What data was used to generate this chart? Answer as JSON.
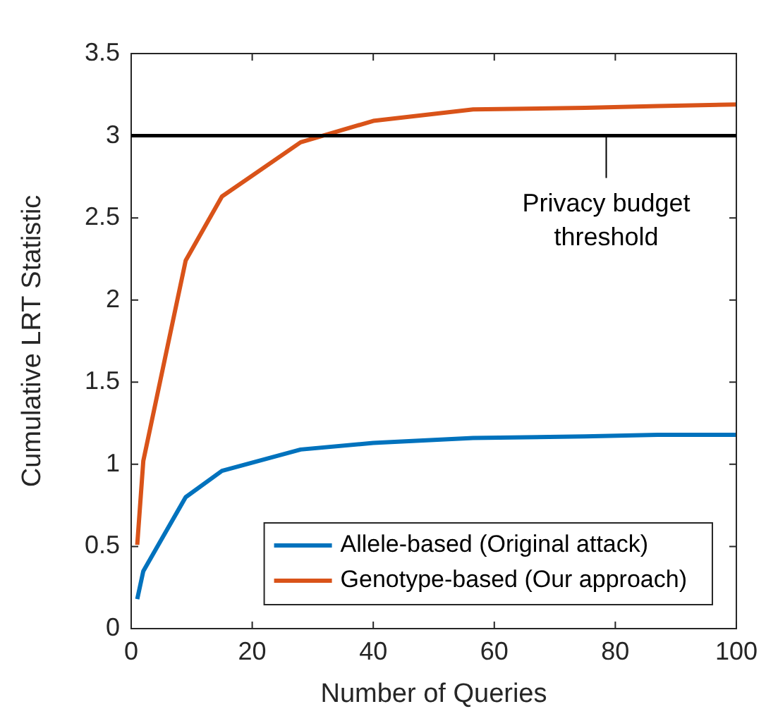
{
  "chart_data": {
    "type": "line",
    "xlabel": "Number of Queries",
    "ylabel": "Cumulative LRT Statistic",
    "x": [
      1,
      2,
      9,
      15,
      28,
      40,
      56.5,
      75,
      87,
      100
    ],
    "series": [
      {
        "name": "Allele-based (Original attack)",
        "color": "#0072bd",
        "values": [
          0.18,
          0.35,
          0.8,
          0.96,
          1.09,
          1.13,
          1.16,
          1.17,
          1.18,
          1.18
        ]
      },
      {
        "name": "Genotype-based (Our approach)",
        "color": "#d95319",
        "values": [
          0.51,
          1.02,
          2.24,
          2.63,
          2.96,
          3.09,
          3.16,
          3.17,
          3.18,
          3.19
        ]
      }
    ],
    "xlim": [
      0,
      100
    ],
    "xticks": [
      0,
      20,
      40,
      60,
      80,
      100
    ],
    "ylim": [
      0,
      3.5
    ],
    "yticks": [
      0,
      0.5,
      1,
      1.5,
      2,
      2.5,
      3,
      3.5
    ],
    "ref_lines": [
      {
        "axis": "y",
        "value": 3,
        "label": "Privacy budget threshold",
        "color": "#000000"
      }
    ],
    "grid": false,
    "legend": "bottom right",
    "marker": "none",
    "line_style": "solid"
  }
}
